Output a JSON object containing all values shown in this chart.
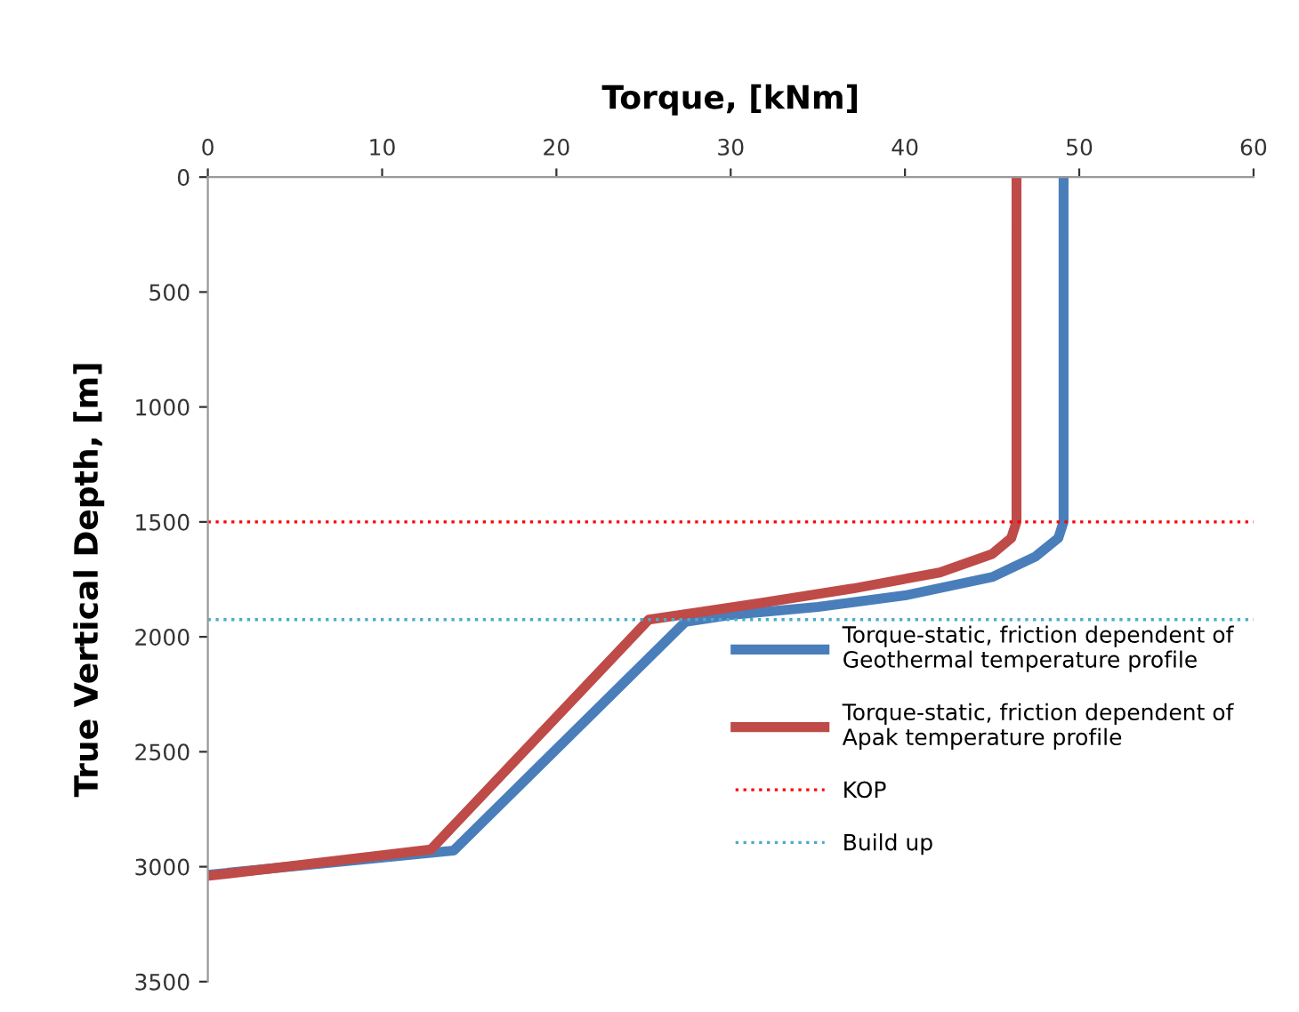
{
  "chart_data": {
    "type": "line",
    "xlabel": "Torque, [kNm]",
    "ylabel": "True Vertical Depth, [m]",
    "xlim": [
      0,
      60
    ],
    "xticks": [
      0,
      10,
      20,
      30,
      40,
      50,
      60
    ],
    "ylim": [
      3500,
      0
    ],
    "yticks": [
      0,
      500,
      1000,
      1500,
      2000,
      2500,
      3000,
      3500
    ],
    "grid": false,
    "legend": "right",
    "marker": "none",
    "line_style": "solid",
    "series": [
      {
        "name": "Torque-static, friction dependent of Geothermal temperature profile",
        "color": "#4a7ebb",
        "x": [
          49.1,
          49.1,
          48.8,
          47.5,
          45,
          40,
          35,
          30,
          27.4,
          14.1,
          0
        ],
        "values": [
          0,
          1500,
          1570,
          1650,
          1740,
          1820,
          1870,
          1905,
          1935,
          2930,
          3035
        ]
      },
      {
        "name": "Torque-static, friction dependent of Apak temperature profile",
        "color": "#be4b48",
        "x": [
          46.4,
          46.4,
          46.1,
          45,
          42,
          37,
          32,
          28,
          25.3,
          12.8,
          0
        ],
        "values": [
          0,
          1500,
          1570,
          1640,
          1720,
          1790,
          1850,
          1895,
          1925,
          2925,
          3040
        ]
      }
    ],
    "ref_lines": [
      {
        "axis": "y",
        "value": 1500,
        "label": "KOP",
        "color": "#ff0000",
        "line_style": "dotted"
      },
      {
        "axis": "y",
        "value": 1925,
        "label": "Build up",
        "color": "#4bacc6",
        "line_style": "dotted"
      }
    ]
  }
}
